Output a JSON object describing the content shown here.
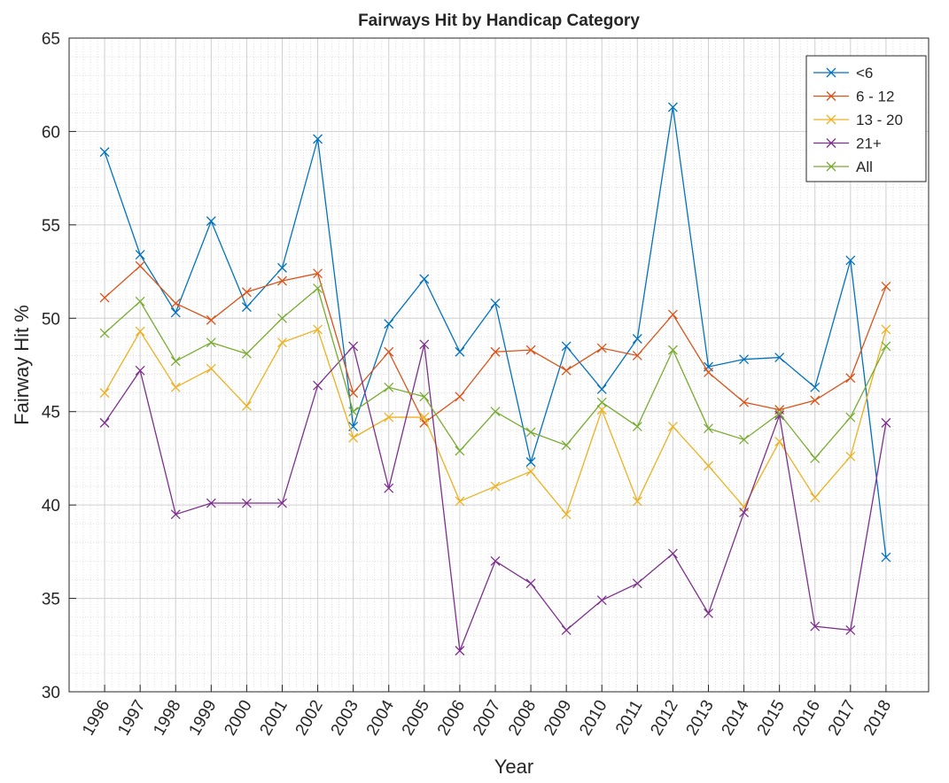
{
  "chart_data": {
    "type": "line",
    "title": "Fairways Hit by Handicap Category",
    "x_label": "Year",
    "y_label": "Fairway Hit %",
    "x": [
      1996,
      1997,
      1998,
      1999,
      2000,
      2001,
      2002,
      2003,
      2004,
      2005,
      2006,
      2007,
      2008,
      2009,
      2010,
      2011,
      2012,
      2013,
      2014,
      2015,
      2016,
      2017,
      2018
    ],
    "series": [
      {
        "name": "<6",
        "color": "#0072BD",
        "values": [
          58.9,
          53.4,
          50.3,
          55.2,
          50.6,
          52.7,
          59.6,
          44.2,
          49.7,
          52.1,
          48.2,
          50.8,
          42.3,
          48.5,
          46.2,
          48.9,
          61.3,
          47.4,
          47.8,
          47.9,
          46.3,
          53.1,
          37.2
        ]
      },
      {
        "name": "6 - 12",
        "color": "#D95319",
        "values": [
          51.1,
          52.8,
          50.8,
          49.9,
          51.4,
          52.0,
          52.4,
          46.0,
          48.2,
          44.4,
          45.8,
          48.2,
          48.3,
          47.2,
          48.4,
          48.0,
          50.2,
          47.1,
          45.5,
          45.1,
          45.6,
          46.8,
          51.7
        ]
      },
      {
        "name": "13 - 20",
        "color": "#EDB120",
        "values": [
          46.0,
          49.3,
          46.3,
          47.3,
          45.3,
          48.7,
          49.4,
          43.6,
          44.7,
          44.7,
          40.2,
          41.0,
          41.8,
          39.5,
          45.1,
          40.2,
          44.2,
          42.1,
          39.9,
          43.4,
          40.4,
          42.6,
          49.4
        ]
      },
      {
        "name": "21+",
        "color": "#7E2F8E",
        "values": [
          44.4,
          47.2,
          39.5,
          40.1,
          40.1,
          40.1,
          46.4,
          48.5,
          40.9,
          48.6,
          32.2,
          37.0,
          35.8,
          33.3,
          34.9,
          35.8,
          37.4,
          34.2,
          39.6,
          44.8,
          33.5,
          33.3,
          44.4
        ]
      },
      {
        "name": "All",
        "color": "#77AC30",
        "values": [
          49.2,
          50.9,
          47.7,
          48.7,
          48.1,
          50.0,
          51.6,
          45.0,
          46.3,
          45.8,
          42.9,
          45.0,
          43.9,
          43.2,
          45.5,
          44.2,
          48.3,
          44.1,
          43.5,
          44.9,
          42.5,
          44.7,
          48.5
        ]
      }
    ],
    "xlim": [
      1995,
      2019.2
    ],
    "xticks": [
      1996,
      1997,
      1998,
      1999,
      2000,
      2001,
      2002,
      2003,
      2004,
      2005,
      2006,
      2007,
      2008,
      2009,
      2010,
      2011,
      2012,
      2013,
      2014,
      2015,
      2016,
      2017,
      2018
    ],
    "ylim": [
      30,
      65
    ],
    "yticks": [
      30,
      35,
      40,
      45,
      50,
      55,
      60,
      65
    ],
    "grid": true,
    "minor_grid": true,
    "legend": "northeast"
  }
}
